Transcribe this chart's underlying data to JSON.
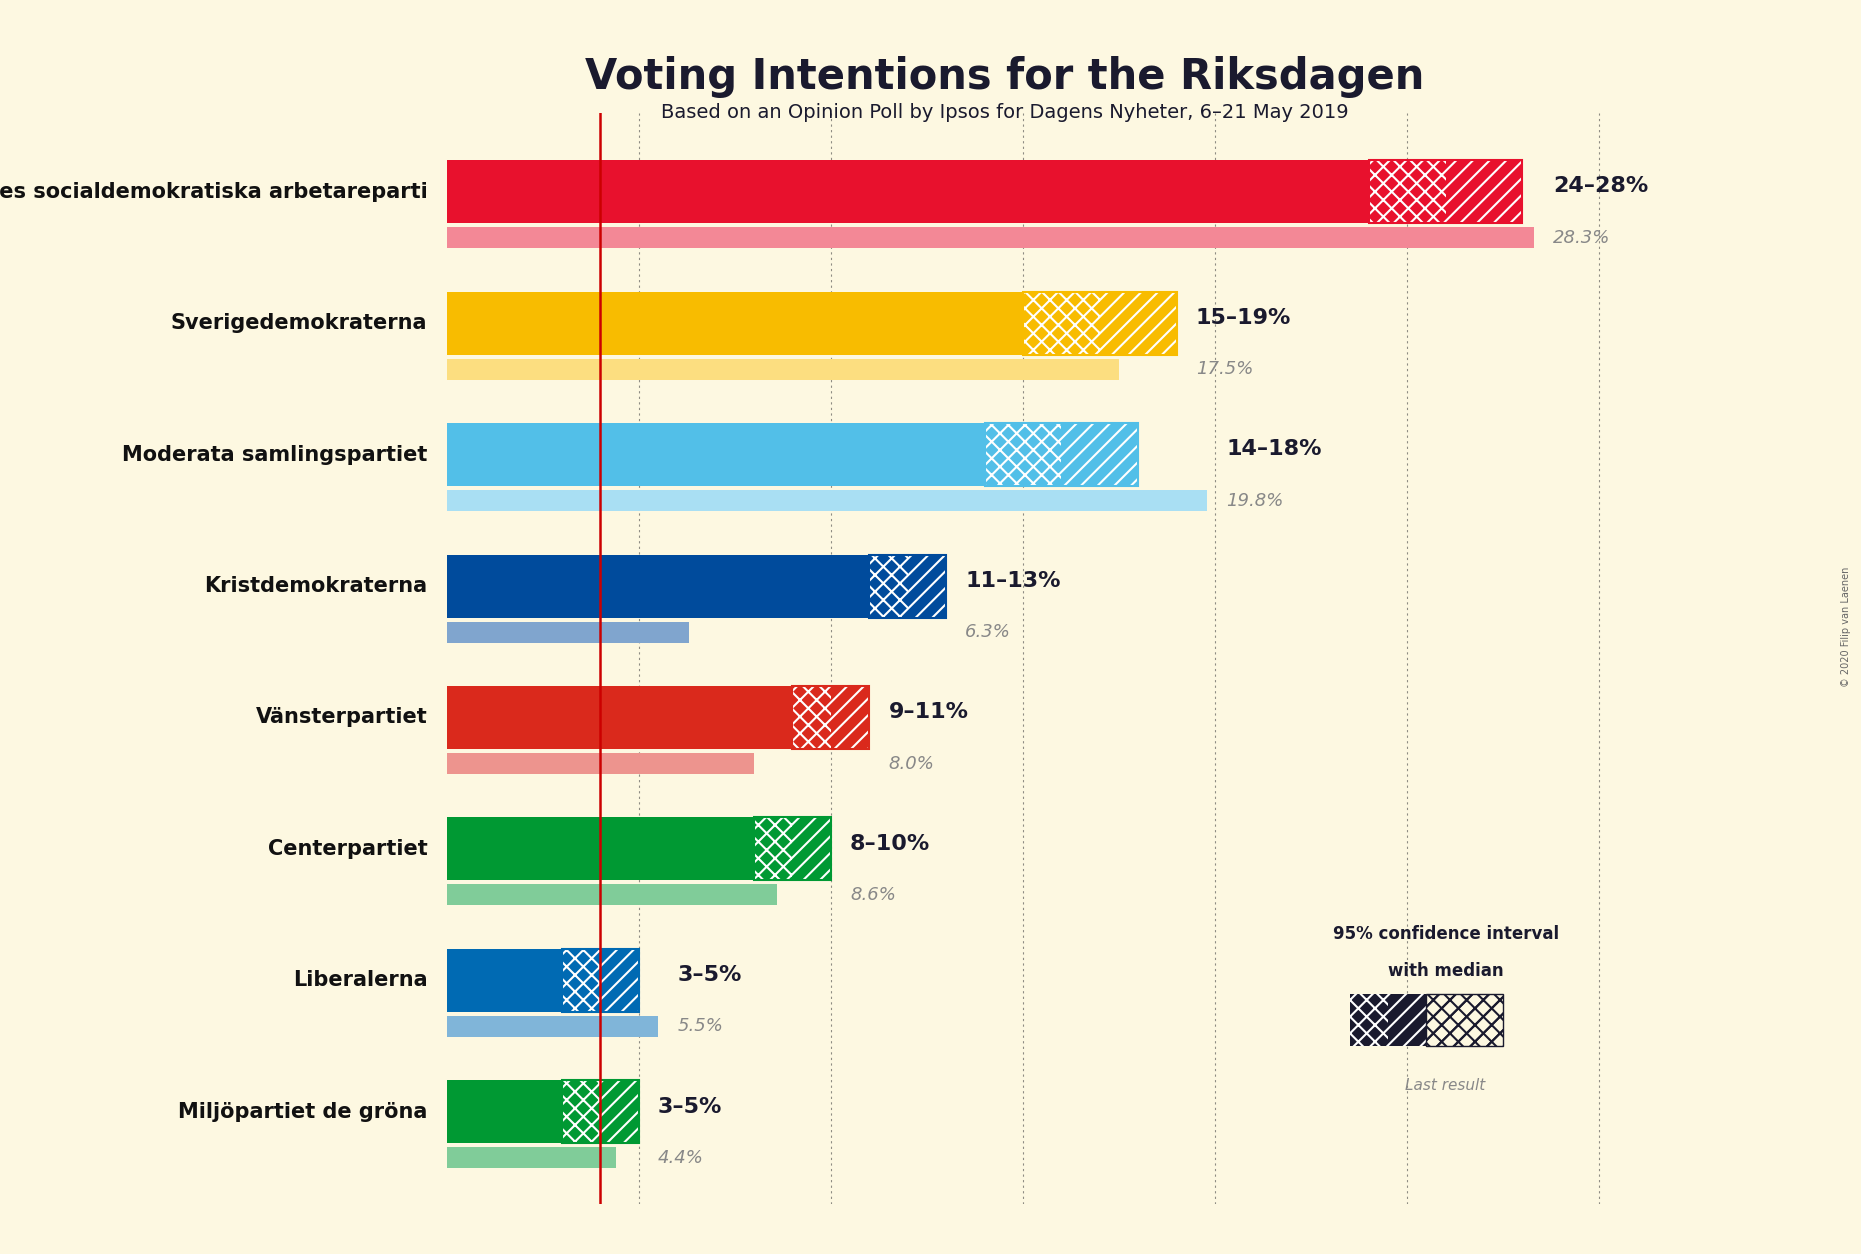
{
  "title": "Voting Intentions for the Riksdagen",
  "subtitle": "Based on an Opinion Poll by Ipsos for Dagens Nyheter, 6–21 May 2019",
  "copyright": "© 2020 Filip van Laenen",
  "background_color": "#fdf8e1",
  "parties": [
    {
      "name": "Sveriges socialdemokratiska arbetareparti",
      "ci_low": 24,
      "ci_high": 28,
      "median": 26,
      "last_result": 28.3,
      "color": "#E8112d",
      "label": "24–28%",
      "last_label": "28.3%"
    },
    {
      "name": "Sverigedemokraterna",
      "ci_low": 15,
      "ci_high": 19,
      "median": 17,
      "last_result": 17.5,
      "color": "#F8BC00",
      "label": "15–19%",
      "last_label": "17.5%"
    },
    {
      "name": "Moderata samlingspartiet",
      "ci_low": 14,
      "ci_high": 18,
      "median": 16,
      "last_result": 19.8,
      "color": "#52BFE8",
      "label": "14–18%",
      "last_label": "19.8%"
    },
    {
      "name": "Kristdemokraterna",
      "ci_low": 11,
      "ci_high": 13,
      "median": 12,
      "last_result": 6.3,
      "color": "#004B9C",
      "label": "11–13%",
      "last_label": "6.3%"
    },
    {
      "name": "Vänsterpartiet",
      "ci_low": 9,
      "ci_high": 11,
      "median": 10,
      "last_result": 8.0,
      "color": "#DA291C",
      "label": "9–11%",
      "last_label": "8.0%"
    },
    {
      "name": "Centerpartiet",
      "ci_low": 8,
      "ci_high": 10,
      "median": 9,
      "last_result": 8.6,
      "color": "#009933",
      "label": "8–10%",
      "last_label": "8.6%"
    },
    {
      "name": "Liberalerna",
      "ci_low": 3,
      "ci_high": 5,
      "median": 4,
      "last_result": 5.5,
      "color": "#006AB3",
      "label": "3–5%",
      "last_label": "5.5%"
    },
    {
      "name": "Miljöpartiet de gröna",
      "ci_low": 3,
      "ci_high": 5,
      "median": 4,
      "last_result": 4.4,
      "color": "#009933",
      "label": "3–5%",
      "last_label": "4.4%"
    }
  ],
  "xlim_max": 31,
  "dotted_lines": [
    5,
    10,
    15,
    20,
    25,
    30
  ],
  "red_line_x": 4.0,
  "bar_height": 0.48,
  "last_bar_height": 0.16,
  "label_color": "#1a1a2e",
  "last_result_color": "#888888",
  "name_fontsize": 15,
  "label_fontsize": 16,
  "last_label_fontsize": 13,
  "title_fontsize": 30,
  "subtitle_fontsize": 14
}
